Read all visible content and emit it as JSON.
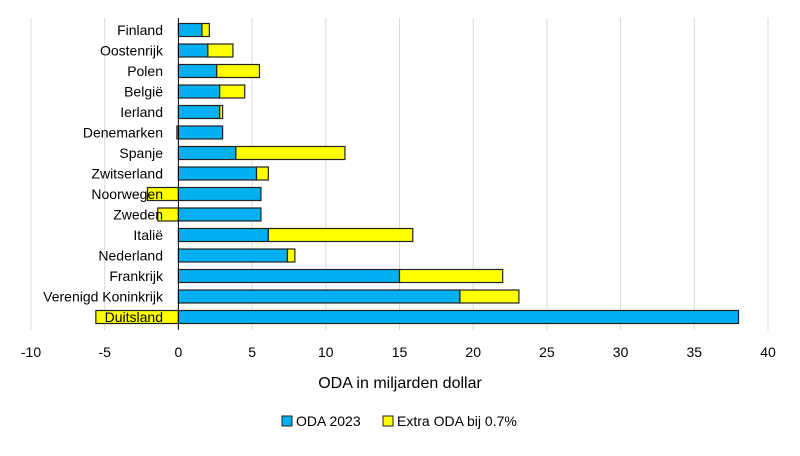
{
  "chart_data": {
    "type": "bar",
    "orientation": "horizontal",
    "stacked": true,
    "title": "",
    "xlabel": "ODA in miljarden dollar",
    "ylabel": "",
    "xlim": [
      -10,
      40
    ],
    "xticks": [
      -10,
      -5,
      0,
      5,
      10,
      15,
      20,
      25,
      30,
      35,
      40
    ],
    "grid": true,
    "legend_position": "bottom",
    "categories": [
      "Finland",
      "Oostenrijk",
      "Polen",
      "België",
      "Ierland",
      "Denemarken",
      "Spanje",
      "Zwitserland",
      "Noorwegen",
      "Zweden",
      "Italië",
      "Nederland",
      "Frankrijk",
      "Verenigd Koninkrijk",
      "Duitsland"
    ],
    "series": [
      {
        "name": "ODA 2023",
        "color": "#00B0F0",
        "values": [
          1.6,
          2.0,
          2.6,
          2.8,
          2.8,
          3.0,
          3.9,
          5.3,
          5.6,
          5.6,
          6.1,
          7.4,
          15.0,
          19.1,
          38.0
        ]
      },
      {
        "name": "Extra ODA bij 0.7%",
        "color": "#FFFF00",
        "values": [
          0.5,
          1.7,
          2.9,
          1.7,
          0.2,
          -0.1,
          7.4,
          0.8,
          -2.1,
          -1.4,
          9.8,
          0.5,
          7.0,
          4.0,
          -5.6
        ]
      }
    ]
  }
}
